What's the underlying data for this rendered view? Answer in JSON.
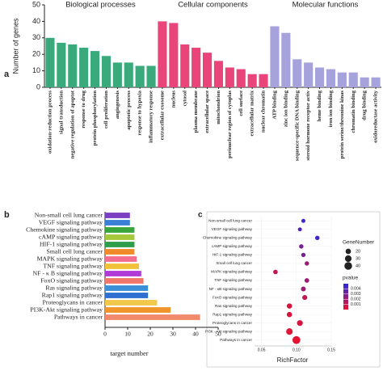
{
  "chart_data": [
    {
      "type": "bar",
      "panel_label": "a",
      "ylabel": "Number of genes",
      "ylim": [
        0,
        50
      ],
      "yticks": [
        0,
        10,
        20,
        30,
        40,
        50
      ],
      "series": [
        {
          "name": "Biological processes",
          "color": "#3aa97c",
          "categories": [
            "oxidation-reduction process",
            "signal transduction",
            "negative regulation of apoptot",
            "response to drug",
            "protein phosphorylation",
            "cell proliferation",
            "angiogenesis",
            "apoptotic process",
            "response to hypoxia",
            "inflammatory response"
          ],
          "values": [
            30,
            27,
            26,
            24,
            22,
            19,
            15,
            15,
            13,
            13
          ]
        },
        {
          "name": "Cellular components",
          "color": "#e9457a",
          "categories": [
            "extracellular exosome",
            "nucleus",
            "cytosol",
            "plasma membrane",
            "extracellular space",
            "mitochondrion",
            "perinuclear region of cytoplas",
            "cell surface",
            "extracellular matrix",
            "nuclear chromatin"
          ],
          "values": [
            40,
            39,
            26,
            24,
            21,
            16,
            12,
            11,
            8,
            8
          ]
        },
        {
          "name": "Molecular functions",
          "color": "#a6a2dc",
          "categories": [
            "ATP binding",
            "zinc ion binding",
            "sequence-specific DNA binding",
            "steroid hormone receptor activ",
            "heme binding",
            "iron ion binding",
            "protein serine/threonine kinas",
            "chromatin binding",
            "drug binding",
            "oxidoreductase activity"
          ],
          "values": [
            37,
            33,
            17,
            15,
            12,
            11,
            9,
            9,
            6,
            6
          ]
        }
      ]
    },
    {
      "type": "barh",
      "panel_label": "b",
      "xlabel": "target number",
      "xlim": [
        0,
        50
      ],
      "xticks": [
        0,
        10,
        20,
        30,
        40,
        50
      ],
      "categories": [
        "Non-small cell lung cancer",
        "VEGF signaling pathway",
        "Chemokine signaling pathway",
        "cAMP signaling pathway",
        "HIF-1 signaling pathway",
        "Small cell lung cancer",
        "MAPK signaling pathway",
        "TNF signaling pathway",
        "NF - κ B signaling pathway",
        "FoxO signaling pathway",
        "Ras signaling pathway",
        "Rap1 signaling pathway",
        "Proteoglycans in cancer",
        "PI3K-Akt signaling pathway",
        "Pathways in cancer"
      ],
      "values": [
        11,
        11,
        13,
        13,
        13,
        13,
        14,
        15,
        16,
        17,
        19,
        19,
        23,
        29,
        42
      ],
      "colors": [
        "#7b3fc4",
        "#3a7fd6",
        "#3aa53a",
        "#a5c93a",
        "#2f9e4a",
        "#f08a2a",
        "#f26e8e",
        "#f2c33a",
        "#b03ad6",
        "#f0786a",
        "#3a8fd6",
        "#2f6fd0",
        "#f2c84a",
        "#f0952a",
        "#f08a6a"
      ]
    },
    {
      "type": "scatter",
      "panel_label": "c",
      "xlabel": "RichFactor",
      "xlim": [
        0.04,
        0.15
      ],
      "xticks": [
        0.05,
        {
          "value": 0.1,
          "label": "0.10"
        },
        0.15
      ],
      "categories": [
        "Non-small cell lung cancer",
        "VEGF signaling pathway",
        "Chemokine signaling pathway",
        "cAMP signaling pathway",
        "HIF-1 signaling pathway",
        "Small cell lung cancer",
        "MAPK signaling pathway",
        "TNF signaling pathway",
        "NF - κB signaling pathway",
        "FoxO signaling pathway",
        "Ras signaling pathway",
        "Rap1 signaling pathway",
        "Proteoglycans in cancer",
        "PI3K - Akt signaling pathway",
        "Pathways in cancer"
      ],
      "x": [
        0.11,
        0.105,
        0.13,
        0.107,
        0.11,
        0.115,
        0.07,
        0.115,
        0.11,
        0.112,
        0.09,
        0.09,
        0.105,
        0.09,
        0.1
      ],
      "sizes": [
        11,
        11,
        13,
        13,
        13,
        13,
        14,
        15,
        16,
        17,
        19,
        19,
        23,
        29,
        42
      ],
      "pvalues": [
        0.0045,
        0.004,
        0.0045,
        0.003,
        0.003,
        0.002,
        0.001,
        0.002,
        0.002,
        0.001,
        0.0005,
        0.0005,
        0.0005,
        0.0002,
        0.0001
      ],
      "size_legend": {
        "title": "GeneNumber",
        "ticks": [
          20,
          30,
          40
        ]
      },
      "color_legend": {
        "title": "pvalue",
        "lim": [
          0,
          0.005
        ],
        "ticks": [
          0.004,
          0.003,
          0.002,
          0.001
        ],
        "colors": [
          "#e8132e",
          "#2a2ad8"
        ]
      }
    }
  ]
}
